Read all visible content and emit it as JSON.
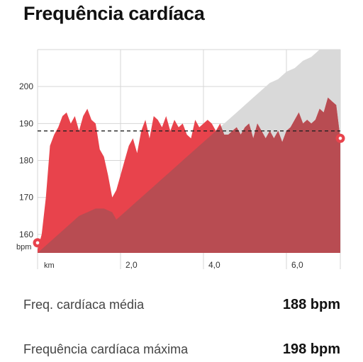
{
  "header": {
    "title": "Frequência cardíaca"
  },
  "stats": [
    {
      "label": "Freq. cardíaca média",
      "value": "188 bpm"
    },
    {
      "label": "Frequência cardíaca máxima",
      "value": "198 bpm"
    }
  ],
  "colors": {
    "heart_rate_fill": "#e8434c",
    "elevation_fill": "#d9d9d9",
    "overlap_fill": "#b84c52",
    "average_line": "#222222",
    "marker_ring": "#e8434c",
    "grid": "#d6d6d6",
    "axis_text": "#333333"
  },
  "chart_data": {
    "type": "area",
    "xlabel": "",
    "x_unit_label": "km",
    "y_unit_label": "bpm",
    "ylim": [
      155,
      210
    ],
    "xlim": [
      0,
      7.3
    ],
    "y_ticks": [
      160,
      170,
      180,
      190,
      200
    ],
    "x_ticks": [
      2.0,
      4.0,
      6.0
    ],
    "x_tick_labels": [
      "2,0",
      "4,0",
      "6,0"
    ],
    "grid": true,
    "average_line": 188,
    "series": [
      {
        "kind": "heart_rate",
        "x": [
          0,
          0.1,
          0.2,
          0.3,
          0.4,
          0.5,
          0.6,
          0.7,
          0.8,
          0.9,
          1.0,
          1.1,
          1.2,
          1.3,
          1.4,
          1.5,
          1.6,
          1.7,
          1.8,
          1.9,
          2.0,
          2.1,
          2.2,
          2.3,
          2.4,
          2.5,
          2.6,
          2.7,
          2.8,
          2.9,
          3.0,
          3.1,
          3.2,
          3.3,
          3.4,
          3.5,
          3.6,
          3.7,
          3.8,
          3.9,
          4.0,
          4.1,
          4.2,
          4.3,
          4.4,
          4.5,
          4.6,
          4.7,
          4.8,
          4.9,
          5.0,
          5.1,
          5.2,
          5.3,
          5.4,
          5.5,
          5.6,
          5.7,
          5.8,
          5.9,
          6.0,
          6.1,
          6.2,
          6.3,
          6.4,
          6.5,
          6.6,
          6.7,
          6.8,
          6.9,
          7.0,
          7.1,
          7.2,
          7.3
        ],
        "values": [
          156,
          160,
          170,
          184,
          187,
          189,
          192,
          193,
          190,
          192,
          188,
          192,
          194,
          191,
          190,
          183,
          181,
          176,
          170,
          172,
          176,
          180,
          184,
          186,
          182,
          188,
          191,
          186,
          192,
          191,
          189,
          192,
          188,
          191,
          189,
          190,
          187,
          186,
          191,
          189,
          190,
          191,
          190,
          188,
          190,
          187,
          187,
          188,
          189,
          187,
          189,
          190,
          186,
          190,
          188,
          186,
          188,
          186,
          188,
          185,
          188,
          189,
          191,
          193,
          190,
          191,
          190,
          191,
          194,
          193,
          197,
          196,
          195,
          186
        ]
      },
      {
        "kind": "elevation",
        "x": [
          0,
          0.2,
          0.4,
          0.6,
          0.8,
          1.0,
          1.2,
          1.4,
          1.6,
          1.8,
          1.9,
          2.0,
          2.2,
          2.4,
          2.6,
          2.8,
          3.0,
          3.2,
          3.4,
          3.6,
          3.8,
          4.0,
          4.2,
          4.4,
          4.6,
          4.8,
          5.0,
          5.2,
          5.4,
          5.6,
          5.8,
          6.0,
          6.2,
          6.4,
          6.6,
          6.8,
          7.0,
          7.2,
          7.3
        ],
        "values": [
          155,
          157,
          159,
          161,
          163,
          165,
          166,
          167,
          167,
          166,
          164,
          165,
          167,
          169,
          171,
          173,
          175,
          177,
          179,
          181,
          183,
          185,
          187,
          189,
          191,
          193,
          195,
          197,
          199,
          201,
          202,
          204,
          205,
          207,
          208,
          210,
          212,
          213,
          214
        ]
      }
    ]
  }
}
